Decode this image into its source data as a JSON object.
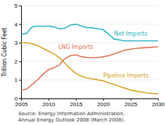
{
  "chart_data": {
    "type": "line",
    "ylabel": "Trillion Cubic Feet",
    "annotations": [
      "Source: Energy Information Administration,",
      "Annual Energy Outlook 2008 (March 2008)."
    ],
    "x": [
      2005,
      2006,
      2007,
      2008,
      2009,
      2010,
      2011,
      2012,
      2013,
      2014,
      2015,
      2016,
      2017,
      2018,
      2019,
      2020,
      2021,
      2022,
      2023,
      2024,
      2025,
      2026,
      2027,
      2028,
      2029,
      2030
    ],
    "xlim": [
      2005,
      2030
    ],
    "ylim": [
      0,
      5
    ],
    "xticks": [
      2005,
      2010,
      2015,
      2020,
      2025,
      2030
    ],
    "yticks": [
      0,
      1,
      2,
      3,
      4,
      5
    ],
    "grid": true,
    "series": [
      {
        "name": "Net Imports",
        "color": "#2ab0c5",
        "values": [
          3.45,
          3.5,
          3.85,
          3.9,
          3.88,
          3.9,
          3.85,
          3.75,
          3.78,
          3.95,
          4.0,
          3.9,
          3.82,
          3.8,
          3.75,
          3.7,
          3.45,
          3.2,
          3.15,
          3.1,
          3.1,
          3.1,
          3.1,
          3.1,
          3.1,
          3.1
        ]
      },
      {
        "name": "LNG Imports",
        "color": "#e07050",
        "values": [
          0.45,
          0.5,
          0.75,
          1.0,
          1.3,
          1.55,
          1.65,
          1.8,
          2.15,
          2.3,
          2.35,
          2.25,
          2.2,
          2.2,
          2.2,
          2.25,
          2.3,
          2.4,
          2.5,
          2.6,
          2.65,
          2.7,
          2.72,
          2.74,
          2.76,
          2.78
        ]
      },
      {
        "name": "Pipeline Imports",
        "color": "#d4a020",
        "values": [
          3.0,
          3.0,
          2.95,
          2.85,
          2.7,
          2.55,
          2.4,
          2.2,
          1.9,
          1.6,
          1.35,
          1.2,
          1.1,
          1.05,
          1.0,
          0.95,
          0.85,
          0.75,
          0.65,
          0.55,
          0.45,
          0.4,
          0.35,
          0.3,
          0.27,
          0.25
        ]
      }
    ]
  }
}
